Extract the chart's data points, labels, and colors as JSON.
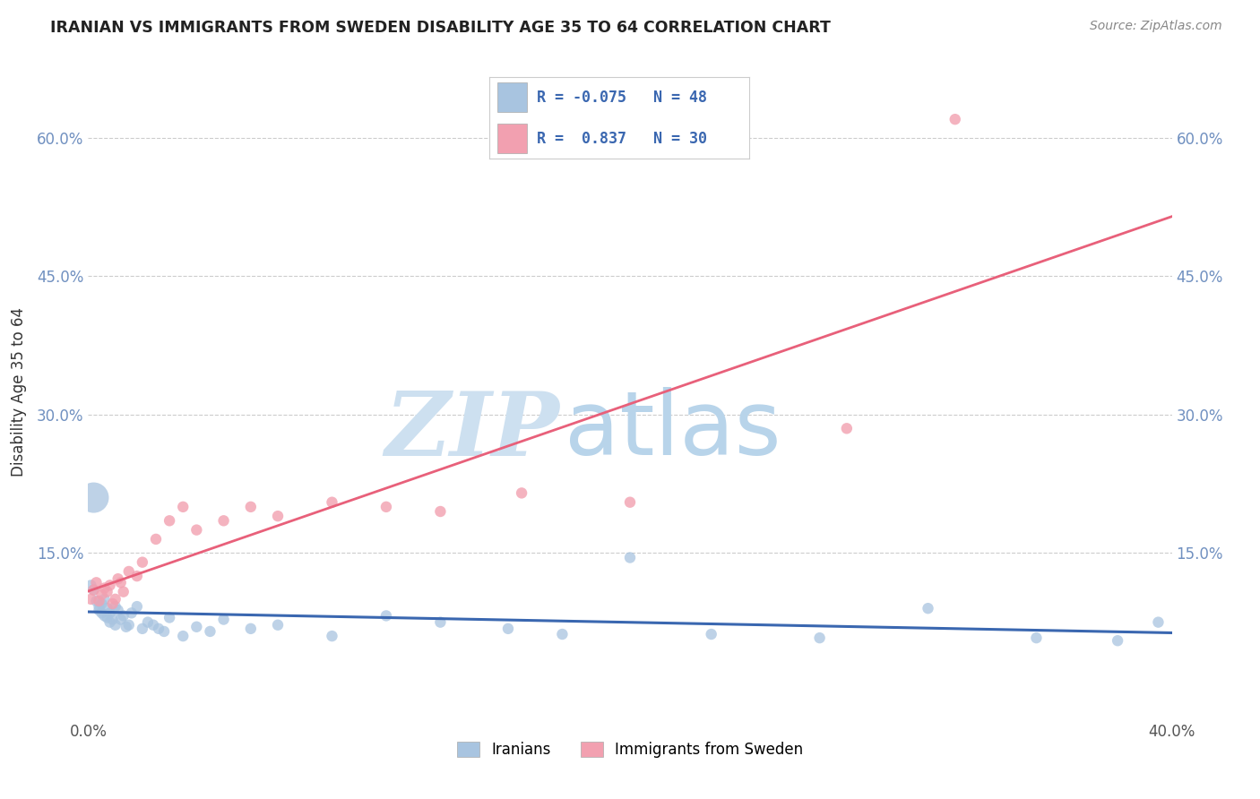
{
  "title": "IRANIAN VS IMMIGRANTS FROM SWEDEN DISABILITY AGE 35 TO 64 CORRELATION CHART",
  "source": "Source: ZipAtlas.com",
  "ylabel": "Disability Age 35 to 64",
  "xlim": [
    0.0,
    0.4
  ],
  "ylim": [
    -0.03,
    0.68
  ],
  "x_ticks": [
    0.0,
    0.1,
    0.2,
    0.3,
    0.4
  ],
  "x_tick_labels": [
    "0.0%",
    "",
    "",
    "",
    "40.0%"
  ],
  "y_ticks": [
    0.15,
    0.3,
    0.45,
    0.6
  ],
  "y_tick_labels": [
    "15.0%",
    "30.0%",
    "45.0%",
    "60.0%"
  ],
  "watermark_zip": "ZIP",
  "watermark_atlas": "atlas",
  "legend_entries": [
    {
      "label": "Iranians",
      "color": "#a8c4e0",
      "R": "-0.075",
      "N": "48"
    },
    {
      "label": "Immigrants from Sweden",
      "color": "#f2a0b0",
      "R": " 0.837",
      "N": "30"
    }
  ],
  "iranians_x": [
    0.001,
    0.002,
    0.003,
    0.004,
    0.004,
    0.005,
    0.005,
    0.006,
    0.006,
    0.007,
    0.007,
    0.008,
    0.008,
    0.009,
    0.01,
    0.01,
    0.011,
    0.012,
    0.013,
    0.014,
    0.015,
    0.016,
    0.018,
    0.02,
    0.022,
    0.024,
    0.026,
    0.028,
    0.03,
    0.035,
    0.04,
    0.045,
    0.05,
    0.06,
    0.07,
    0.09,
    0.11,
    0.13,
    0.155,
    0.175,
    0.2,
    0.23,
    0.27,
    0.31,
    0.35,
    0.38,
    0.395,
    0.002
  ],
  "iranians_y": [
    0.115,
    0.11,
    0.098,
    0.092,
    0.088,
    0.095,
    0.085,
    0.1,
    0.082,
    0.09,
    0.08,
    0.085,
    0.075,
    0.078,
    0.092,
    0.072,
    0.088,
    0.078,
    0.082,
    0.07,
    0.072,
    0.085,
    0.092,
    0.068,
    0.075,
    0.072,
    0.068,
    0.065,
    0.08,
    0.06,
    0.07,
    0.065,
    0.078,
    0.068,
    0.072,
    0.06,
    0.082,
    0.075,
    0.068,
    0.062,
    0.145,
    0.062,
    0.058,
    0.09,
    0.058,
    0.055,
    0.075,
    0.21
  ],
  "iranians_size": [
    80,
    80,
    80,
    80,
    80,
    80,
    80,
    80,
    80,
    80,
    80,
    80,
    80,
    80,
    80,
    80,
    80,
    80,
    80,
    80,
    80,
    80,
    80,
    80,
    80,
    80,
    80,
    80,
    80,
    80,
    80,
    80,
    80,
    80,
    80,
    80,
    80,
    80,
    80,
    80,
    80,
    80,
    80,
    80,
    80,
    80,
    80,
    600
  ],
  "sweden_x": [
    0.001,
    0.002,
    0.003,
    0.004,
    0.005,
    0.006,
    0.007,
    0.008,
    0.009,
    0.01,
    0.011,
    0.012,
    0.013,
    0.015,
    0.018,
    0.02,
    0.025,
    0.03,
    0.035,
    0.04,
    0.05,
    0.06,
    0.07,
    0.09,
    0.11,
    0.13,
    0.16,
    0.2,
    0.28,
    0.32
  ],
  "sweden_y": [
    0.1,
    0.11,
    0.118,
    0.098,
    0.105,
    0.112,
    0.108,
    0.115,
    0.095,
    0.1,
    0.122,
    0.118,
    0.108,
    0.13,
    0.125,
    0.14,
    0.165,
    0.185,
    0.2,
    0.175,
    0.185,
    0.2,
    0.19,
    0.205,
    0.2,
    0.195,
    0.215,
    0.205,
    0.285,
    0.62
  ],
  "sweden_size": [
    80,
    80,
    80,
    80,
    80,
    80,
    80,
    80,
    80,
    80,
    80,
    80,
    80,
    80,
    80,
    80,
    80,
    80,
    80,
    80,
    80,
    80,
    80,
    80,
    80,
    80,
    80,
    80,
    80,
    80
  ],
  "iranian_line_color": "#3a67b0",
  "sweden_line_color": "#e8607a",
  "grid_color": "#cccccc",
  "background_color": "#ffffff",
  "title_color": "#222222",
  "watermark_color_zip": "#cde0f0",
  "watermark_color_atlas": "#b8d4ea",
  "source_color": "#888888",
  "tick_color": "#7090c0"
}
